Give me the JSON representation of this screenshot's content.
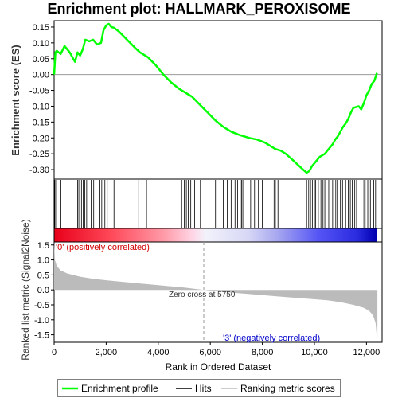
{
  "title": "Enrichment plot: HALLMARK_PEROXISOME",
  "colors": {
    "es_line": "#00ff00",
    "hits": "#000000",
    "metric_fill": "#bbbbbb",
    "pos_label": "#d00000",
    "neg_label": "#0000cc"
  },
  "chart_data": [
    {
      "type": "line",
      "name": "enrichment-score",
      "ylabel": "Enrichment score (ES)",
      "ylim": [
        -0.33,
        0.17
      ],
      "yticks": [
        "0.15",
        "0.10",
        "0.05",
        "0.00",
        "-0.05",
        "-0.10",
        "-0.15",
        "-0.20",
        "-0.25",
        "-0.30"
      ],
      "ytick_values": [
        0.15,
        0.1,
        0.05,
        0.0,
        -0.05,
        -0.1,
        -0.15,
        -0.2,
        -0.25,
        -0.3
      ],
      "xlim": [
        0,
        12600
      ],
      "series": [
        {
          "name": "Enrichment profile",
          "x": [
            0,
            50,
            100,
            250,
            400,
            600,
            800,
            900,
            1000,
            1100,
            1200,
            1350,
            1500,
            1650,
            1800,
            1900,
            2000,
            2100,
            2200,
            2300,
            2500,
            2800,
            3100,
            3300,
            3600,
            3900,
            4200,
            4500,
            4800,
            5000,
            5300,
            5600,
            5900,
            6200,
            6500,
            6800,
            7100,
            7300,
            7500,
            7800,
            8100,
            8300,
            8500,
            8700,
            8900,
            9100,
            9300,
            9500,
            9700,
            9800,
            9900,
            10000,
            10100,
            10200,
            10300,
            10400,
            10500,
            10600,
            10700,
            10800,
            10900,
            11000,
            11100,
            11200,
            11300,
            11400,
            11500,
            11700,
            11800,
            11900,
            12000,
            12100,
            12200,
            12300,
            12400
          ],
          "y": [
            0.0,
            0.07,
            0.075,
            0.065,
            0.09,
            0.07,
            0.04,
            0.07,
            0.06,
            0.08,
            0.11,
            0.105,
            0.11,
            0.095,
            0.1,
            0.14,
            0.155,
            0.16,
            0.15,
            0.148,
            0.135,
            0.11,
            0.085,
            0.07,
            0.055,
            0.03,
            0.0,
            -0.025,
            -0.045,
            -0.055,
            -0.07,
            -0.095,
            -0.12,
            -0.145,
            -0.165,
            -0.18,
            -0.19,
            -0.195,
            -0.2,
            -0.205,
            -0.215,
            -0.225,
            -0.235,
            -0.24,
            -0.25,
            -0.265,
            -0.28,
            -0.295,
            -0.31,
            -0.305,
            -0.29,
            -0.28,
            -0.27,
            -0.26,
            -0.255,
            -0.25,
            -0.24,
            -0.23,
            -0.22,
            -0.205,
            -0.195,
            -0.18,
            -0.165,
            -0.155,
            -0.14,
            -0.12,
            -0.105,
            -0.1,
            -0.11,
            -0.09,
            -0.065,
            -0.05,
            -0.03,
            -0.02,
            0.005
          ]
        }
      ]
    },
    {
      "type": "scatter",
      "name": "hits",
      "series": [
        {
          "name": "Hits",
          "x": [
            20,
            60,
            260,
            900,
            950,
            1050,
            1120,
            1180,
            1250,
            1420,
            1520,
            1760,
            1830,
            1880,
            1950,
            2040,
            2300,
            3250,
            3550,
            4900,
            5000,
            5080,
            5150,
            5250,
            5400,
            5620,
            6100,
            6200,
            6500,
            6650,
            6800,
            6950,
            7050,
            7150,
            7200,
            7250,
            7450,
            7550,
            7700,
            7850,
            8000,
            8450,
            8500,
            8600,
            9250,
            9700,
            9780,
            9850,
            9920,
            10000,
            10050,
            10150,
            10250,
            10330,
            10400,
            10550,
            10700,
            10750,
            10820,
            10880,
            11000,
            11080,
            11200,
            11300,
            11380,
            11450,
            11550,
            11620,
            11900,
            11950,
            12050,
            12150,
            12280,
            12350
          ]
        }
      ]
    },
    {
      "type": "area",
      "name": "ranked-list-metric",
      "ylabel": "Ranked list metric (Signal2Noise)",
      "xlabel": "Rank in Ordered Dataset",
      "ylim": [
        -1.75,
        1.6
      ],
      "yticks": [
        "1.5",
        "1.0",
        "0.5",
        "0.0",
        "-0.5",
        "-1.0",
        "-1.5"
      ],
      "ytick_values": [
        1.5,
        1.0,
        0.5,
        0.0,
        -0.5,
        -1.0,
        -1.5
      ],
      "xticks": [
        "0",
        "2,000",
        "4,000",
        "6,000",
        "8,000",
        "10,000",
        "12,000"
      ],
      "xtick_values": [
        0,
        2000,
        4000,
        6000,
        8000,
        10000,
        12000
      ],
      "xlim": [
        0,
        12600
      ],
      "series": [
        {
          "name": "Ranking metric scores",
          "x": [
            0,
            30,
            100,
            250,
            500,
            1000,
            1500,
            2000,
            3000,
            4000,
            5000,
            5750,
            6500,
            7500,
            8500,
            9500,
            10500,
            11000,
            11500,
            11900,
            12100,
            12250,
            12350,
            12400,
            12420
          ],
          "y": [
            1.62,
            1.0,
            0.8,
            0.65,
            0.55,
            0.44,
            0.37,
            0.32,
            0.24,
            0.16,
            0.08,
            0.0,
            -0.07,
            -0.14,
            -0.21,
            -0.28,
            -0.35,
            -0.41,
            -0.5,
            -0.6,
            -0.7,
            -0.85,
            -1.1,
            -1.6,
            -1.6
          ]
        }
      ],
      "annotations": {
        "positive": "'0' (positively correlated)",
        "negative": "'3' (negatively correlated)",
        "zero_cross": "Zero cross at 5750",
        "zero_cross_x": 5750
      }
    }
  ],
  "legend": {
    "items": [
      {
        "label": "Enrichment profile"
      },
      {
        "label": "Hits"
      },
      {
        "label": "Ranking metric scores"
      }
    ]
  }
}
